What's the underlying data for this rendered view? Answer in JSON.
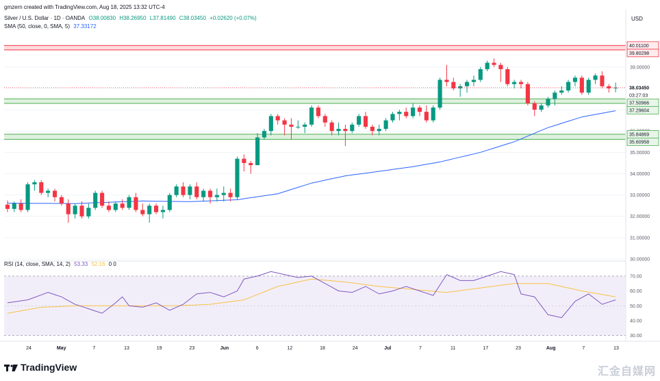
{
  "header": {
    "attribution": "gmzern created with TradingView.com, Aug 18, 2025 13:32 UTC-4",
    "symbol": "Silver / U.S. Dollar · 1D · OANDA",
    "ohlc": [
      "O38.00830",
      "H38.26950",
      "L37.81490",
      "C38.03450"
    ],
    "change": "+0.02620 (+0.07%)",
    "sma_label": "SMA (50, close, 0, SMA, 5)",
    "sma_value": "37.33172"
  },
  "rsi_legend": {
    "label": "RSI (14, close, SMA, 14, 2)",
    "rsi_value": "53.33",
    "rsi_ma_value": "52.16",
    "extra": "0 0"
  },
  "currency": "USD",
  "brand": "TradingView",
  "watermark": "汇金自媒网",
  "colors": {
    "up": "#089981",
    "down": "#f23645",
    "sma": "#2962ff",
    "rsi": "#7e57c2",
    "rsi_ma": "#f7c244",
    "rsi_band": "#ede7f6",
    "resistance_zone": "#f23645",
    "support_zone": "#4caf50"
  },
  "chart_data": [
    {
      "type": "candlestick",
      "title": "Silver / U.S. Dollar · 1D · OANDA",
      "ylim": [
        30.0,
        40.6
      ],
      "y_ticks": [
        "39.00000",
        "38.00000",
        "37.00000",
        "36.00000",
        "35.00000",
        "34.00000",
        "33.00000",
        "32.00000",
        "31.00000",
        "30.00000"
      ],
      "x_tick_labels": [
        "24",
        "May",
        "7",
        "13",
        "19",
        "23",
        "Jun",
        "6",
        "12",
        "18",
        "24",
        "Jul",
        "7",
        "11",
        "17",
        "23",
        "Aug",
        "7",
        "13"
      ],
      "price_labels": [
        {
          "text": "40.01100",
          "value": 40.011,
          "kind": "resistance"
        },
        {
          "text": "39.80298",
          "value": 39.80298,
          "kind": "resistance"
        },
        {
          "text": "38.03450",
          "value": 38.0345,
          "kind": "last"
        },
        {
          "text": "03:27:03",
          "value": 37.8,
          "kind": "countdown"
        },
        {
          "text": "37.50966",
          "value": 37.50966,
          "kind": "support"
        },
        {
          "text": "37.29604",
          "value": 37.29604,
          "kind": "support"
        },
        {
          "text": "35.84869",
          "value": 35.84869,
          "kind": "support"
        },
        {
          "text": "35.60958",
          "value": 35.60958,
          "kind": "support"
        }
      ],
      "zones": [
        {
          "name": "resistance",
          "from": 39.80298,
          "to": 40.011
        },
        {
          "name": "support-upper",
          "from": 37.29604,
          "to": 37.50966
        },
        {
          "name": "support-lower",
          "from": 35.60958,
          "to": 35.84869
        }
      ],
      "series": [
        {
          "name": "Silver / U.S. Dollar",
          "candles": [
            [
              32.55,
              32.75,
              32.2,
              32.35
            ],
            [
              32.35,
              32.7,
              32.2,
              32.6
            ],
            [
              32.6,
              32.8,
              32.2,
              32.3
            ],
            [
              32.3,
              33.6,
              32.2,
              33.5
            ],
            [
              33.5,
              33.7,
              33.2,
              33.6
            ],
            [
              33.6,
              33.7,
              33.0,
              33.1
            ],
            [
              33.1,
              33.3,
              32.9,
              33.2
            ],
            [
              33.2,
              33.3,
              32.7,
              32.9
            ],
            [
              32.9,
              33.0,
              32.5,
              32.6
            ],
            [
              32.6,
              32.8,
              31.7,
              32.1
            ],
            [
              32.1,
              32.6,
              31.9,
              32.5
            ],
            [
              32.5,
              32.7,
              31.9,
              32.0
            ],
            [
              32.0,
              32.6,
              31.9,
              32.4
            ],
            [
              32.4,
              33.2,
              32.3,
              33.1
            ],
            [
              33.1,
              33.2,
              32.4,
              32.5
            ],
            [
              32.5,
              32.7,
              32.2,
              32.3
            ],
            [
              32.3,
              32.7,
              32.2,
              32.6
            ],
            [
              32.6,
              32.8,
              32.3,
              32.4
            ],
            [
              32.4,
              33.0,
              32.3,
              32.9
            ],
            [
              32.9,
              33.1,
              32.2,
              32.3
            ],
            [
              32.3,
              32.6,
              32.0,
              32.1
            ],
            [
              32.1,
              32.6,
              31.7,
              32.5
            ],
            [
              32.5,
              32.6,
              32.1,
              32.2
            ],
            [
              32.2,
              32.5,
              31.9,
              32.3
            ],
            [
              32.3,
              33.1,
              32.2,
              33.0
            ],
            [
              33.0,
              33.5,
              32.9,
              33.4
            ],
            [
              33.4,
              33.6,
              32.9,
              33.0
            ],
            [
              33.0,
              33.5,
              32.8,
              33.4
            ],
            [
              33.4,
              33.6,
              32.8,
              32.9
            ],
            [
              32.9,
              33.3,
              32.7,
              33.2
            ],
            [
              33.2,
              33.3,
              32.6,
              32.9
            ],
            [
              32.9,
              33.3,
              32.7,
              33.0
            ],
            [
              33.0,
              33.4,
              32.7,
              33.1
            ],
            [
              33.1,
              33.3,
              32.7,
              32.9
            ],
            [
              32.9,
              34.8,
              32.8,
              34.7
            ],
            [
              34.7,
              34.9,
              34.1,
              34.5
            ],
            [
              34.5,
              34.6,
              34.0,
              34.4
            ],
            [
              34.4,
              35.9,
              34.4,
              35.7
            ],
            [
              35.7,
              36.1,
              35.6,
              36.0
            ],
            [
              36.0,
              36.8,
              35.8,
              36.7
            ],
            [
              36.7,
              36.8,
              36.3,
              36.5
            ],
            [
              36.5,
              36.6,
              35.8,
              36.3
            ],
            [
              36.3,
              36.6,
              35.6,
              36.2
            ],
            [
              36.2,
              36.5,
              36.1,
              36.2
            ],
            [
              36.2,
              36.4,
              35.9,
              36.3
            ],
            [
              36.3,
              37.2,
              36.2,
              37.1
            ],
            [
              37.1,
              37.2,
              36.6,
              36.7
            ],
            [
              36.7,
              36.8,
              36.2,
              36.4
            ],
            [
              36.4,
              36.5,
              35.8,
              36.0
            ],
            [
              36.0,
              36.4,
              35.8,
              36.1
            ],
            [
              36.1,
              36.3,
              35.3,
              36.0
            ],
            [
              36.0,
              36.4,
              35.9,
              36.3
            ],
            [
              36.3,
              36.8,
              36.2,
              36.7
            ],
            [
              36.7,
              36.9,
              36.1,
              36.2
            ],
            [
              36.2,
              36.3,
              35.8,
              36.0
            ],
            [
              36.0,
              36.3,
              35.8,
              36.1
            ],
            [
              36.1,
              36.6,
              36.0,
              36.5
            ],
            [
              36.5,
              36.9,
              36.4,
              36.8
            ],
            [
              36.8,
              37.0,
              36.5,
              36.9
            ],
            [
              36.9,
              37.1,
              36.6,
              36.7
            ],
            [
              36.7,
              37.3,
              36.6,
              37.1
            ],
            [
              37.1,
              37.2,
              36.7,
              36.9
            ],
            [
              36.9,
              37.2,
              36.4,
              36.5
            ],
            [
              36.5,
              37.2,
              36.4,
              37.1
            ],
            [
              37.1,
              38.5,
              37.0,
              38.4
            ],
            [
              38.4,
              39.1,
              38.1,
              38.3
            ],
            [
              38.3,
              38.5,
              37.9,
              38.0
            ],
            [
              38.0,
              38.2,
              37.6,
              38.1
            ],
            [
              38.1,
              38.4,
              37.8,
              38.3
            ],
            [
              38.3,
              38.6,
              38.1,
              38.4
            ],
            [
              38.4,
              39.0,
              38.3,
              38.9
            ],
            [
              38.9,
              39.3,
              38.8,
              39.2
            ],
            [
              39.2,
              39.4,
              39.0,
              39.1
            ],
            [
              39.1,
              39.2,
              38.3,
              38.9
            ],
            [
              38.9,
              39.0,
              38.1,
              38.2
            ],
            [
              38.2,
              38.4,
              38.0,
              38.3
            ],
            [
              38.3,
              38.4,
              38.0,
              38.2
            ],
            [
              38.2,
              38.3,
              37.2,
              37.3
            ],
            [
              37.3,
              37.4,
              36.7,
              37.0
            ],
            [
              37.0,
              37.3,
              36.9,
              37.2
            ],
            [
              37.2,
              37.6,
              37.1,
              37.5
            ],
            [
              37.5,
              37.9,
              37.2,
              37.8
            ],
            [
              37.8,
              38.1,
              37.7,
              37.9
            ],
            [
              37.9,
              38.4,
              37.8,
              38.3
            ],
            [
              38.3,
              38.6,
              38.1,
              38.5
            ],
            [
              38.5,
              38.6,
              37.7,
              37.8
            ],
            [
              37.8,
              38.5,
              37.7,
              38.4
            ],
            [
              38.4,
              38.7,
              38.2,
              38.6
            ],
            [
              38.6,
              38.8,
              38.0,
              38.1
            ],
            [
              38.1,
              38.2,
              37.8,
              38.0
            ],
            [
              38.0083,
              38.2695,
              37.8149,
              38.0345
            ]
          ]
        },
        {
          "name": "SMA (50, close, 0, SMA, 5)",
          "knots": [
            [
              0,
              32.62
            ],
            [
              10,
              32.6
            ],
            [
              20,
              32.72
            ],
            [
              27,
              32.69
            ],
            [
              34,
              32.78
            ],
            [
              40,
              33.06
            ],
            [
              45,
              33.56
            ],
            [
              50,
              33.9
            ],
            [
              55,
              34.11
            ],
            [
              60,
              34.33
            ],
            [
              64,
              34.55
            ],
            [
              70,
              35.0
            ],
            [
              75,
              35.5
            ],
            [
              80,
              36.16
            ],
            [
              85,
              36.66
            ],
            [
              90,
              36.95
            ],
            [
              95,
              37.2
            ],
            [
              99,
              37.33
            ]
          ]
        }
      ]
    },
    {
      "type": "line",
      "title": "RSI (14, close, SMA, 14, 2)",
      "ylim": [
        28,
        75
      ],
      "y_ticks": [
        "70.00",
        "60.00",
        "50.00",
        "40.00",
        "30.00"
      ],
      "band": [
        30,
        70
      ],
      "series": [
        {
          "name": "RSI",
          "knots": [
            [
              0,
              52
            ],
            [
              3,
              54
            ],
            [
              6,
              59
            ],
            [
              8,
              56
            ],
            [
              10,
              51
            ],
            [
              12,
              48
            ],
            [
              14,
              45
            ],
            [
              16,
              52
            ],
            [
              17,
              56
            ],
            [
              18,
              50
            ],
            [
              20,
              49
            ],
            [
              22,
              52
            ],
            [
              24,
              47
            ],
            [
              26,
              51
            ],
            [
              28,
              58
            ],
            [
              30,
              59
            ],
            [
              32,
              56
            ],
            [
              34,
              60
            ],
            [
              35,
              68
            ],
            [
              37,
              70
            ],
            [
              39,
              73
            ],
            [
              41,
              71
            ],
            [
              43,
              69
            ],
            [
              45,
              70
            ],
            [
              47,
              65
            ],
            [
              49,
              60
            ],
            [
              51,
              59
            ],
            [
              53,
              63
            ],
            [
              55,
              58
            ],
            [
              57,
              60
            ],
            [
              59,
              63
            ],
            [
              61,
              60
            ],
            [
              63,
              57
            ],
            [
              65,
              71
            ],
            [
              67,
              67
            ],
            [
              69,
              67
            ],
            [
              71,
              70
            ],
            [
              73,
              73
            ],
            [
              75,
              71
            ],
            [
              76,
              58
            ],
            [
              78,
              56
            ],
            [
              80,
              44
            ],
            [
              82,
              42
            ],
            [
              84,
              53
            ],
            [
              86,
              58
            ],
            [
              88,
              51
            ],
            [
              90,
              54
            ],
            [
              92,
              58
            ],
            [
              94,
              54
            ],
            [
              96,
              53
            ],
            [
              99,
              53.33
            ]
          ]
        },
        {
          "name": "RSI-based MA",
          "knots": [
            [
              0,
              45
            ],
            [
              5,
              49
            ],
            [
              10,
              50
            ],
            [
              15,
              50
            ],
            [
              20,
              50
            ],
            [
              25,
              50
            ],
            [
              30,
              51
            ],
            [
              35,
              54
            ],
            [
              40,
              63
            ],
            [
              45,
              68
            ],
            [
              50,
              66
            ],
            [
              55,
              63
            ],
            [
              60,
              61
            ],
            [
              65,
              59
            ],
            [
              70,
              62
            ],
            [
              75,
              65
            ],
            [
              80,
              65
            ],
            [
              85,
              60
            ],
            [
              90,
              56
            ],
            [
              95,
              53
            ],
            [
              99,
              52.16
            ]
          ]
        }
      ]
    }
  ]
}
